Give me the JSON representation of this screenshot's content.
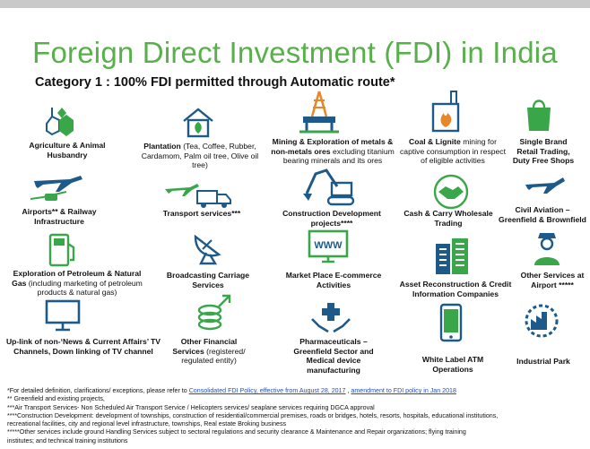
{
  "title": "Foreign Direct Investment (FDI) in India",
  "subtitle": "Category 1 : 100% FDI permitted through Automatic route*",
  "items": [
    {
      "bold": "Agriculture & Animal Husbandry",
      "rest": "",
      "icon": "agriculture-icon"
    },
    {
      "bold": "Plantation",
      "rest": " (Tea, Coffee, Rubber, Cardamom, Palm oil tree, Olive oil tree)",
      "icon": "greenhouse-icon"
    },
    {
      "bold": "Mining & Exploration of metals & non-metals ores",
      "rest": " excluding titanium bearing minerals and its ores",
      "icon": "mining-rig-icon"
    },
    {
      "bold": "Coal & Lignite",
      "rest": " mining for captive consumption in respect of eligible activities",
      "icon": "coal-fire-icon"
    },
    {
      "bold": "Single Brand Retail Trading, Duty Free Shops",
      "rest": "",
      "icon": "shopping-bag-icon"
    },
    {
      "bold": "Airports** & Railway Infrastructure",
      "rest": "",
      "icon": "airplane-train-icon"
    },
    {
      "bold": "Transport services***",
      "rest": "",
      "icon": "plane-truck-icon"
    },
    {
      "bold": "Construction Development projects****",
      "rest": "",
      "icon": "excavator-icon"
    },
    {
      "bold": "Cash & Carry Wholesale Trading",
      "rest": "",
      "icon": "handshake-icon"
    },
    {
      "bold": "Civil Aviation – Greenfield & Brownfield",
      "rest": "",
      "icon": "airplane-icon"
    },
    {
      "bold": "Exploration of Petroleum & Natural Gas",
      "rest": " (including marketing of petroleum products & natural gas)",
      "icon": "fuel-pump-icon"
    },
    {
      "bold": "Broadcasting Carriage Services",
      "rest": "",
      "icon": "satellite-dish-icon"
    },
    {
      "bold": "Market Place E-commerce Activities",
      "rest": "",
      "icon": "www-monitor-icon"
    },
    {
      "bold": "Asset Reconstruction & Credit Information Companies",
      "rest": "",
      "icon": "buildings-icon"
    },
    {
      "bold": "Other Services at Airport *****",
      "rest": "",
      "icon": "ground-staff-icon"
    },
    {
      "bold": "Up-link of non-‘News & Current Affairs’ TV Channels, Down linking of TV channel",
      "rest": "",
      "icon": "tv-icon"
    },
    {
      "bold": "Other Financial Services",
      "rest": " (registered/ regulated entity)",
      "icon": "coin-stack-icon"
    },
    {
      "bold": "Pharmaceuticals – Greenfield Sector and Medical device manufacturing",
      "rest": "",
      "icon": "medical-hands-icon"
    },
    {
      "bold": "White Label ATM Operations",
      "rest": "",
      "icon": "mobile-phone-icon"
    },
    {
      "bold": "Industrial Park",
      "rest": "",
      "icon": "factory-gear-icon"
    }
  ],
  "notes": {
    "line1_pre": "*For detailed definition, clarifications/ exceptions, please refer to ",
    "link1": "Consolidated FDI Policy, effective from August 28, 2017",
    "line1_mid": " , ",
    "link2": "amendment to FDI policy in Jan 2018",
    "line2": "** Greenfield and existing projects,",
    "line3": "***Air Transport Services- Non Scheduled Air Transport Service / Helicopters services/ seaplane services requiring DGCA approval",
    "line4": "****Construction Development: development of townships, construction of residential/commercial premises, roads or bridges, hotels, resorts, hospitals, educational institutions,",
    "line5": "recreational facilities, city and regional level infrastructure, townships, Real estate Broking business",
    "line6": "*****Other services include ground Handling Services subject to sectoral regulations and security clearance & Maintenance and Repair organizations; flying training",
    "line7": "institutes; and technical training institutions"
  },
  "colors": {
    "title": "#58b04a",
    "icon_green": "#3aa64a",
    "icon_blue": "#1d5a8a",
    "link": "#1f4fbf"
  }
}
